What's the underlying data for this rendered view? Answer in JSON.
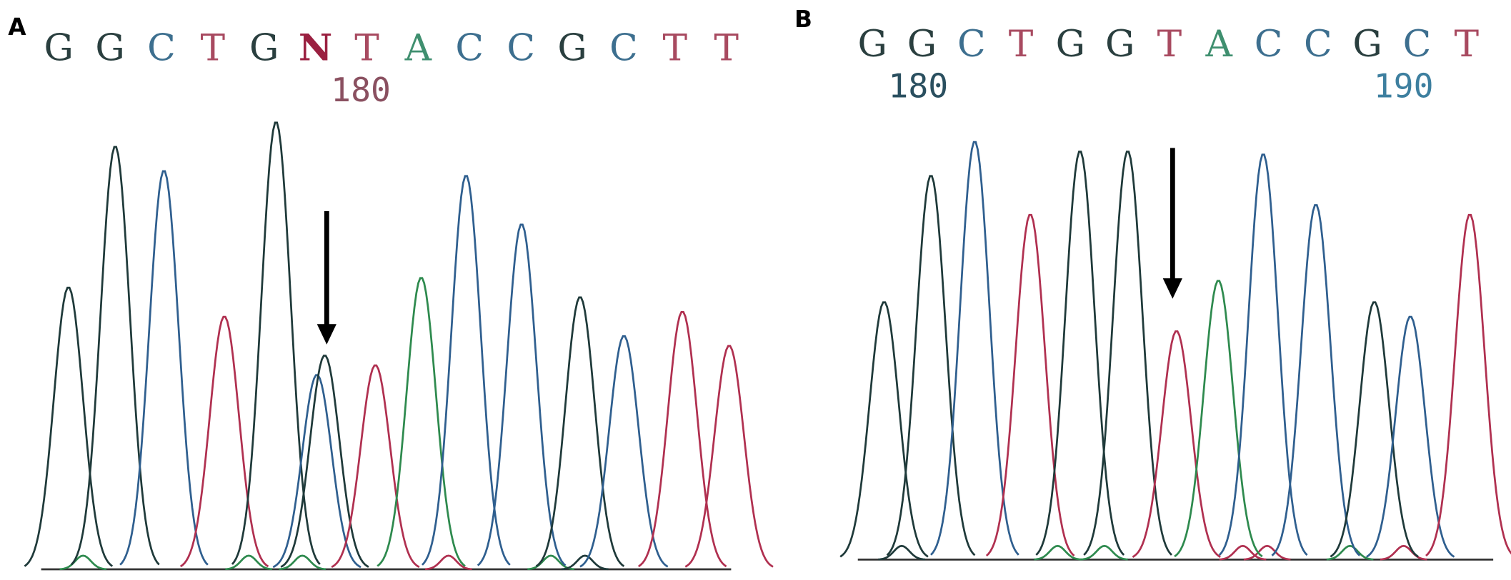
{
  "panels": [
    {
      "label": "A",
      "bases": [
        "G",
        "G",
        "C",
        "T",
        "G",
        "N",
        "T",
        "A",
        "C",
        "C",
        "G",
        "C",
        "T",
        "T"
      ],
      "positions": [
        "180"
      ]
    },
    {
      "label": "B",
      "bases": [
        "G",
        "G",
        "C",
        "T",
        "G",
        "G",
        "T",
        "A",
        "C",
        "C",
        "G",
        "C",
        "T"
      ],
      "positions": [
        "180",
        "190"
      ]
    }
  ]
}
